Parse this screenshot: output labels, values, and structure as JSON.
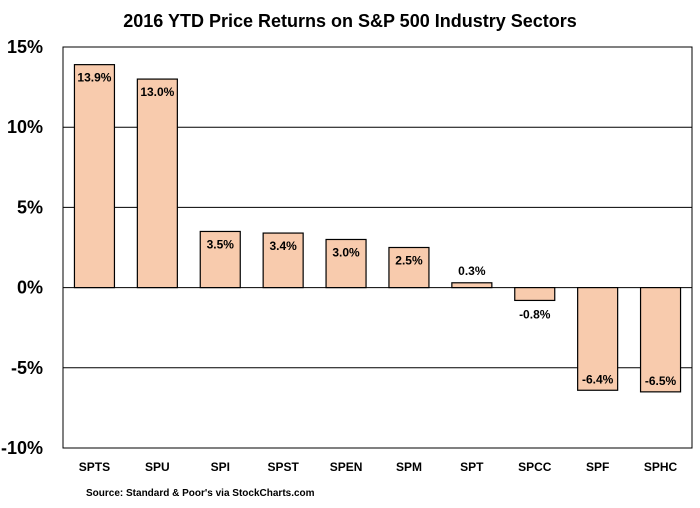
{
  "chart_data": {
    "type": "bar",
    "title": "2016 YTD Price Returns on S&P 500 Industry Sectors",
    "categories": [
      "SPTS",
      "SPU",
      "SPI",
      "SPST",
      "SPEN",
      "SPM",
      "SPT",
      "SPCC",
      "SPF",
      "SPHC"
    ],
    "values": [
      13.9,
      13.0,
      3.5,
      3.4,
      3.0,
      2.5,
      0.3,
      -0.8,
      -6.4,
      -6.5
    ],
    "data_labels": [
      "13.9%",
      "13.0%",
      "3.5%",
      "3.4%",
      "3.0%",
      "2.5%",
      "0.3%",
      "-0.8%",
      "-6.4%",
      "-6.5%"
    ],
    "yticks": [
      15,
      10,
      5,
      0,
      -5,
      -10
    ],
    "ytick_labels": [
      "15%",
      "10%",
      "5%",
      "0%",
      "-5%",
      "-10%"
    ],
    "ylim": [
      -10,
      15
    ],
    "xlabel": "",
    "ylabel": "",
    "grid": true,
    "bar_color": "#F8CBAD",
    "bar_edge_color": "#000000",
    "source": "Source:  Standard & Poor's via StockCharts.com"
  }
}
